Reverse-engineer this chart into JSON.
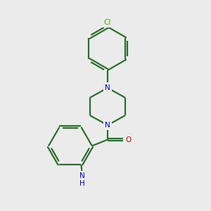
{
  "bg_color": "#ebebeb",
  "bond_color": "#2d6e2d",
  "N_color": "#0000cc",
  "O_color": "#cc0000",
  "Cl_color": "#4caf00",
  "line_width": 1.6,
  "dbo": 0.06,
  "fig_w": 3.0,
  "fig_h": 3.0,
  "dpi": 100,
  "xlim": [
    0,
    10
  ],
  "ylim": [
    0,
    10
  ]
}
